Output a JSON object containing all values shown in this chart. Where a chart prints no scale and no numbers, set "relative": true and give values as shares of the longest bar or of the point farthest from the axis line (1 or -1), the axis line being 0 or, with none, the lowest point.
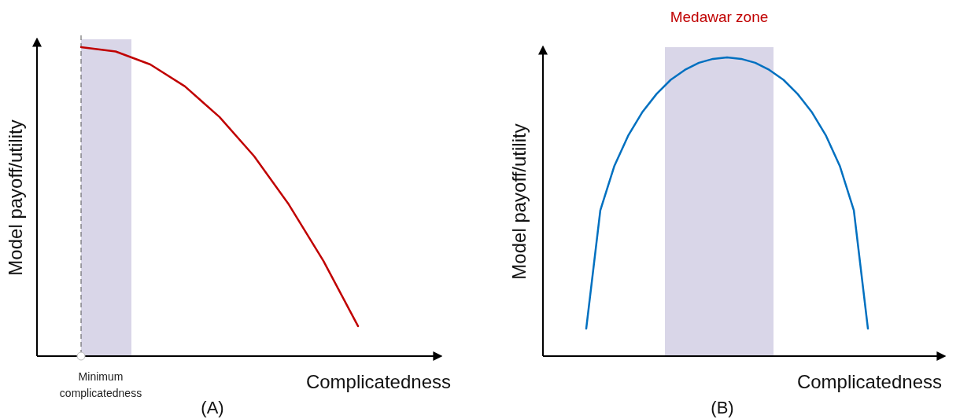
{
  "chart_data": [
    {
      "type": "line",
      "relative": true,
      "xlabel": "Complicatedness",
      "ylabel": "Model payoff/utility",
      "line_style": "solid",
      "categories": [
        null,
        null,
        null,
        null,
        null,
        null,
        null,
        null,
        null
      ],
      "series": [
        {
          "color": "#c00000",
          "values": [
            1,
            0.986,
            0.944,
            0.873,
            0.774,
            0.647,
            0.491,
            0.308,
            0.097
          ]
        }
      ],
      "annotations": [
        "Minimum complicatedness",
        "(A)"
      ]
    },
    {
      "type": "line",
      "relative": true,
      "xlabel": "Complicatedness",
      "ylabel": "Model payoff/utility",
      "line_style": "solid",
      "categories": [
        null,
        null,
        null,
        null,
        null,
        null,
        null,
        null,
        null,
        null,
        null,
        null,
        null,
        null,
        null,
        null,
        null,
        null,
        null,
        null,
        null
      ],
      "series": [
        {
          "color": "#0070c0",
          "values": [
            0.092,
            0.488,
            0.637,
            0.74,
            0.818,
            0.878,
            0.925,
            0.958,
            0.982,
            0.995,
            1,
            0.995,
            0.982,
            0.958,
            0.925,
            0.878,
            0.818,
            0.74,
            0.637,
            0.488,
            0.092
          ]
        }
      ],
      "annotations": [
        "Medawar zone",
        "(B)"
      ]
    }
  ]
}
